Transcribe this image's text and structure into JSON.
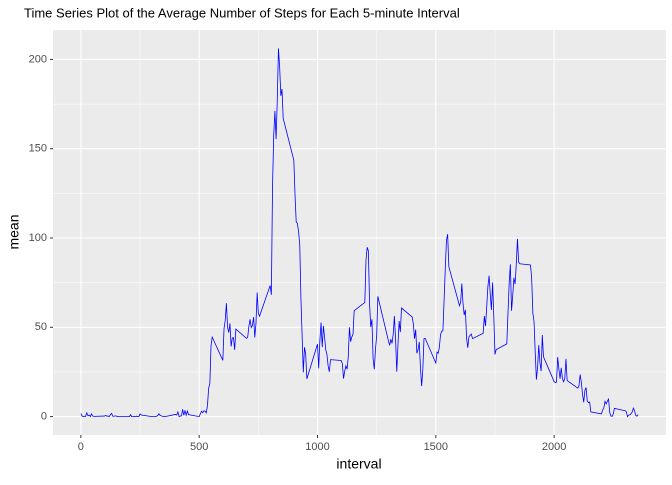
{
  "chart_data": {
    "type": "line",
    "title": "Time Series Plot of the Average Number of Steps for Each 5-minute Interval",
    "x_label": "interval",
    "y_label": "mean",
    "x": [
      0,
      5,
      10,
      15,
      20,
      25,
      30,
      35,
      40,
      45,
      50,
      55,
      100,
      105,
      110,
      115,
      120,
      125,
      130,
      135,
      140,
      145,
      150,
      155,
      200,
      205,
      210,
      215,
      220,
      225,
      230,
      235,
      240,
      245,
      250,
      255,
      300,
      305,
      310,
      315,
      320,
      325,
      330,
      335,
      340,
      345,
      350,
      355,
      400,
      405,
      410,
      415,
      420,
      425,
      430,
      435,
      440,
      445,
      450,
      455,
      500,
      505,
      510,
      515,
      520,
      525,
      530,
      535,
      540,
      545,
      550,
      555,
      600,
      605,
      610,
      615,
      620,
      625,
      630,
      635,
      640,
      645,
      650,
      655,
      700,
      705,
      710,
      715,
      720,
      725,
      730,
      735,
      740,
      745,
      750,
      755,
      800,
      805,
      810,
      815,
      820,
      825,
      830,
      835,
      840,
      845,
      850,
      855,
      900,
      905,
      910,
      915,
      920,
      925,
      930,
      935,
      940,
      945,
      950,
      955,
      1000,
      1005,
      1010,
      1015,
      1020,
      1025,
      1030,
      1035,
      1040,
      1045,
      1050,
      1055,
      1100,
      1105,
      1110,
      1115,
      1120,
      1125,
      1130,
      1135,
      1140,
      1145,
      1150,
      1155,
      1200,
      1205,
      1210,
      1215,
      1220,
      1225,
      1230,
      1235,
      1240,
      1245,
      1250,
      1255,
      1300,
      1305,
      1310,
      1315,
      1320,
      1325,
      1330,
      1335,
      1340,
      1345,
      1350,
      1355,
      1400,
      1405,
      1410,
      1415,
      1420,
      1425,
      1430,
      1435,
      1440,
      1445,
      1450,
      1455,
      1500,
      1505,
      1510,
      1515,
      1520,
      1525,
      1530,
      1535,
      1540,
      1545,
      1550,
      1555,
      1600,
      1605,
      1610,
      1615,
      1620,
      1625,
      1630,
      1635,
      1640,
      1645,
      1650,
      1655,
      1700,
      1705,
      1710,
      1715,
      1720,
      1725,
      1730,
      1735,
      1740,
      1745,
      1750,
      1755,
      1800,
      1805,
      1810,
      1815,
      1820,
      1825,
      1830,
      1835,
      1840,
      1845,
      1850,
      1855,
      1900,
      1905,
      1910,
      1915,
      1920,
      1925,
      1930,
      1935,
      1940,
      1945,
      1950,
      1955,
      2000,
      2005,
      2010,
      2015,
      2020,
      2025,
      2030,
      2035,
      2040,
      2045,
      2050,
      2055,
      2100,
      2105,
      2110,
      2115,
      2120,
      2125,
      2130,
      2135,
      2140,
      2145,
      2150,
      2155,
      2200,
      2205,
      2210,
      2215,
      2220,
      2225,
      2230,
      2235,
      2240,
      2245,
      2250,
      2255,
      2300,
      2305,
      2310,
      2315,
      2320,
      2325,
      2330,
      2335,
      2340,
      2345,
      2350,
      2355
    ],
    "series": [
      {
        "name": "mean",
        "color": "#0000ff",
        "values": [
          1.7,
          0.3,
          0.1,
          0.2,
          0.1,
          2.1,
          0.5,
          0.9,
          0,
          1.5,
          0.3,
          0.1,
          0.3,
          0.7,
          0.2,
          0.3,
          0,
          1.1,
          1.8,
          0.2,
          0.2,
          0.4,
          0.3,
          0,
          0,
          0,
          1.1,
          0,
          0,
          0.1,
          0,
          0.2,
          0,
          0,
          1.5,
          0.9,
          0,
          0,
          0,
          0,
          0.2,
          0.6,
          1.6,
          0.6,
          0.5,
          0.1,
          0,
          0,
          1.2,
          0.9,
          2.6,
          0,
          0.3,
          0.4,
          4.1,
          0.7,
          3.5,
          0.8,
          3.1,
          1.1,
          0,
          1.6,
          3,
          2.2,
          3.3,
          3,
          2.1,
          6.1,
          16,
          18.3,
          39.5,
          44.5,
          31.5,
          49.3,
          53.8,
          63.5,
          50,
          47.1,
          52.2,
          39.3,
          44,
          44.2,
          37.4,
          49,
          43.8,
          44.4,
          50.5,
          54.5,
          49.9,
          51,
          55.7,
          44.3,
          52.3,
          69.5,
          57.8,
          56.2,
          73.4,
          68.2,
          129.4,
          157.5,
          171.2,
          155.4,
          177.3,
          206.2,
          195.9,
          179.6,
          183.4,
          167,
          143.5,
          124,
          109.1,
          108.1,
          103.7,
          96,
          66.2,
          45.2,
          24.8,
          38.8,
          35,
          21.1,
          40.6,
          27,
          42.4,
          52.7,
          38.9,
          50.8,
          44.3,
          37.4,
          34.7,
          28.3,
          25.1,
          31.9,
          31.4,
          29.7,
          21.3,
          25.5,
          28.4,
          26.5,
          33.4,
          50,
          42,
          44.6,
          46,
          59.3,
          63.9,
          87.7,
          94.8,
          92.8,
          63.4,
          50.2,
          54.5,
          32.4,
          26.5,
          37.7,
          45.1,
          67.3,
          42.3,
          39.9,
          43.3,
          41,
          46.2,
          56.4,
          42.8,
          25.1,
          40,
          53.5,
          47.3,
          60.8,
          55.8,
          52,
          43.6,
          48.7,
          35.5,
          37.5,
          41.8,
          27.5,
          17.1,
          26.1,
          43.6,
          43.8,
          30,
          36.1,
          35.5,
          38.8,
          46,
          47.8,
          48.1,
          65.3,
          82.9,
          98.7,
          102.1,
          84,
          62.1,
          64.1,
          74.5,
          63.2,
          56.9,
          59.8,
          43.9,
          38.6,
          44.7,
          45.5,
          46.2,
          43.7,
          46.6,
          56.3,
          50.7,
          61.2,
          72.7,
          78.9,
          68.9,
          59.7,
          75.1,
          56.5,
          34.8,
          37.5,
          40.7,
          58,
          74.7,
          85.3,
          59.3,
          67.8,
          77.7,
          74.2,
          85.3,
          99.5,
          86.6,
          85.6,
          84.9,
          77.8,
          58,
          53.4,
          36.3,
          20.7,
          27.4,
          40,
          30.2,
          25.5,
          45.7,
          33.5,
          19.6,
          19,
          19.3,
          33.3,
          26.8,
          21.2,
          27.3,
          21.3,
          19.5,
          21.3,
          32.3,
          20.2,
          15.9,
          17.2,
          23.5,
          19.2,
          12.5,
          8,
          14.7,
          16.3,
          8.7,
          7.8,
          8.1,
          2.6,
          1.5,
          3.7,
          4.8,
          8.5,
          7.1,
          8.7,
          9.8,
          2.2,
          0.3,
          0.1,
          1.6,
          4.6,
          3.3,
          2.8,
          0,
          0.8,
          1,
          1.6,
          2.6,
          4.7,
          3.3,
          0.6,
          0.2,
          1.1
        ]
      }
    ],
    "xlim": [
      -117.75,
      2472.75
    ],
    "xticks": [
      0,
      500,
      1000,
      1500,
      2000
    ],
    "ylim": [
      -10.31,
      216.48
    ],
    "yticks": [
      0,
      50,
      100,
      150,
      200
    ],
    "grid": true
  }
}
